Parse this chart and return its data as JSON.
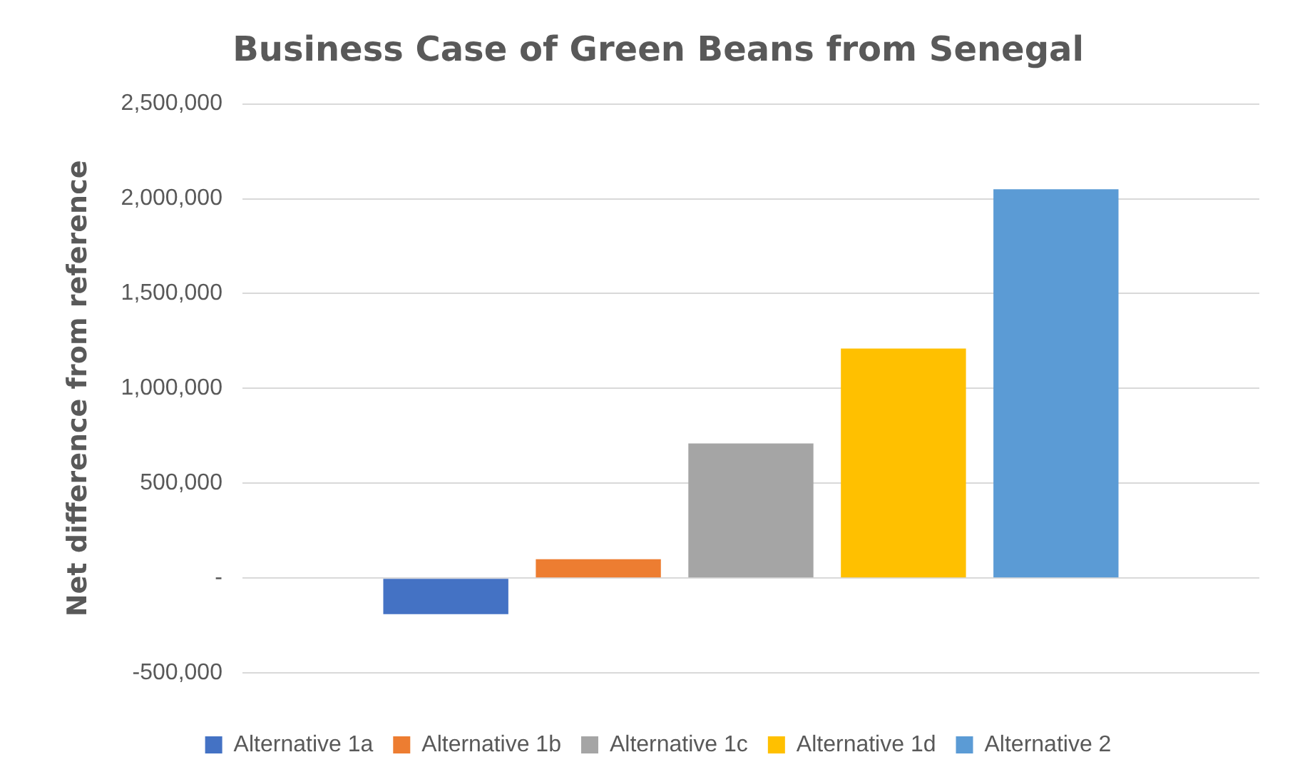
{
  "chart_data": {
    "type": "bar",
    "title": "Business Case of Green Beans from Senegal",
    "ylabel": "Net difference from reference",
    "categories": [
      null
    ],
    "series": [
      {
        "name": "Alternative 1a",
        "color": "#4472c4",
        "values": [
          -190000
        ]
      },
      {
        "name": "Alternative 1b",
        "color": "#ed7d31",
        "values": [
          100000
        ]
      },
      {
        "name": "Alternative 1c",
        "color": "#a5a5a5",
        "values": [
          710000
        ]
      },
      {
        "name": "Alternative 1d",
        "color": "#ffc000",
        "values": [
          1210000
        ]
      },
      {
        "name": "Alternative 2",
        "color": "#5b9bd5",
        "values": [
          2050000
        ]
      }
    ],
    "ylim": [
      -500000,
      2500000
    ],
    "yticks": [
      {
        "value": -500000,
        "label": "-500,000"
      },
      {
        "value": 0,
        "label": "-"
      },
      {
        "value": 500000,
        "label": "500,000"
      },
      {
        "value": 1000000,
        "label": "1,000,000"
      },
      {
        "value": 1500000,
        "label": "1,500,000"
      },
      {
        "value": 2000000,
        "label": "2,000,000"
      },
      {
        "value": 2500000,
        "label": "2,500,000"
      }
    ],
    "grid": "y",
    "legend": "bottom"
  }
}
